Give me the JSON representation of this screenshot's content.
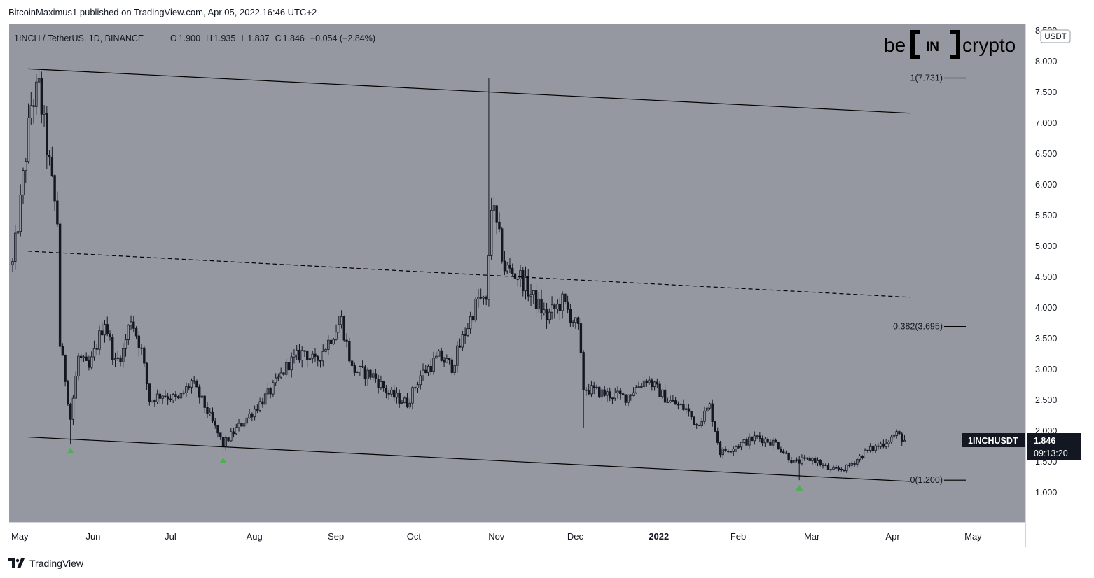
{
  "header": {
    "published_text": "BitcoinMaximus1 published on TradingView.com, Apr 05, 2022 16:46 UTC+2"
  },
  "legend": {
    "symbol": "1INCH / TetherUS, 1D, BINANCE",
    "o_label": "O",
    "o_value": "1.900",
    "h_label": "H",
    "h_value": "1.935",
    "l_label": "L",
    "l_value": "1.837",
    "c_label": "C",
    "c_value": "1.846",
    "change": "−0.054 (−2.84%)"
  },
  "logo": {
    "left": "be",
    "mid": "IN",
    "right": "crypto"
  },
  "price_scale": {
    "currency": "USDT"
  },
  "last_price": {
    "ticker": "1INCHUSDT",
    "price": "1.846",
    "countdown": "09:13:20"
  },
  "fib_labels": [
    {
      "text": "1(7.731)",
      "value": 7.731
    },
    {
      "text": "0.382(3.695)",
      "value": 3.695
    },
    {
      "text": "0(1.200)",
      "value": 1.2
    }
  ],
  "footer": {
    "brand": "TradingView"
  },
  "colors": {
    "plot_bg": "#9598a1",
    "candle": "#131722",
    "arrow": "#4caf50",
    "label_bg": "#131722",
    "label_text": "#ffffff",
    "price_axis_bg": "#ffffff"
  },
  "chart_data": {
    "type": "candlestick",
    "title": "1INCH / TetherUS, 1D, BINANCE",
    "x_tick_labels": [
      "May",
      "Jun",
      "Jul",
      "Aug",
      "Sep",
      "Oct",
      "Nov",
      "Dec",
      "2022",
      "Feb",
      "Mar",
      "Apr",
      "May"
    ],
    "y_tick_labels": [
      "1.000",
      "1.500",
      "2.000",
      "2.500",
      "3.000",
      "3.500",
      "4.000",
      "4.500",
      "5.000",
      "5.500",
      "6.000",
      "6.500",
      "7.000",
      "7.500",
      "8.000",
      "8.500"
    ],
    "ylim": [
      0.52,
      8.6
    ],
    "grid": false,
    "trendlines": [
      {
        "style": "solid",
        "from": [
          "2021-05-01",
          7.88
        ],
        "to": [
          "2022-03-30",
          7.16
        ]
      },
      {
        "style": "dashed",
        "from": [
          "2021-05-01",
          4.92
        ],
        "to": [
          "2022-03-30",
          4.17
        ]
      },
      {
        "style": "solid",
        "from": [
          "2021-05-01",
          1.9
        ],
        "to": [
          "2022-03-30",
          1.18
        ]
      }
    ],
    "markers": [
      {
        "type": "arrow-up",
        "date": "2021-05-23",
        "value": 1.68
      },
      {
        "type": "arrow-up",
        "date": "2021-07-20",
        "value": 1.52
      },
      {
        "type": "arrow-up",
        "date": "2022-02-24",
        "value": 1.08
      }
    ],
    "series": [
      {
        "keypoints": [
          [
            "2021-05-01",
            4.7
          ],
          [
            "2021-05-04",
            5.7
          ],
          [
            "2021-05-08",
            7.3
          ],
          [
            "2021-05-11",
            7.55
          ],
          [
            "2021-05-15",
            6.3
          ],
          [
            "2021-05-18",
            5.4
          ],
          [
            "2021-05-19",
            3.4
          ],
          [
            "2021-05-21",
            2.85
          ],
          [
            "2021-05-23",
            2.2
          ],
          [
            "2021-05-26",
            3.2
          ],
          [
            "2021-05-30",
            3.0
          ],
          [
            "2021-06-05",
            3.8
          ],
          [
            "2021-06-09",
            3.1
          ],
          [
            "2021-06-12",
            3.3
          ],
          [
            "2021-06-15",
            3.85
          ],
          [
            "2021-06-19",
            3.3
          ],
          [
            "2021-06-22",
            2.5
          ],
          [
            "2021-06-27",
            2.6
          ],
          [
            "2021-07-03",
            2.5
          ],
          [
            "2021-07-08",
            2.8
          ],
          [
            "2021-07-13",
            2.4
          ],
          [
            "2021-07-20",
            1.78
          ],
          [
            "2021-07-24",
            1.98
          ],
          [
            "2021-08-01",
            2.35
          ],
          [
            "2021-08-08",
            2.7
          ],
          [
            "2021-08-14",
            3.1
          ],
          [
            "2021-08-20",
            3.3
          ],
          [
            "2021-08-24",
            3.1
          ],
          [
            "2021-09-03",
            3.8
          ],
          [
            "2021-09-07",
            3.0
          ],
          [
            "2021-09-15",
            2.9
          ],
          [
            "2021-09-21",
            2.6
          ],
          [
            "2021-09-28",
            2.45
          ],
          [
            "2021-10-03",
            2.9
          ],
          [
            "2021-10-10",
            3.2
          ],
          [
            "2021-10-15",
            3.05
          ],
          [
            "2021-10-20",
            3.6
          ],
          [
            "2021-10-25",
            4.15
          ],
          [
            "2021-10-28",
            4.05
          ],
          [
            "2021-10-30",
            5.7
          ],
          [
            "2021-11-02",
            5.1
          ],
          [
            "2021-11-04",
            4.65
          ],
          [
            "2021-11-10",
            4.5
          ],
          [
            "2021-11-15",
            4.15
          ],
          [
            "2021-11-20",
            3.85
          ],
          [
            "2021-11-26",
            4.1
          ],
          [
            "2021-12-02",
            3.65
          ],
          [
            "2021-12-04",
            2.7
          ],
          [
            "2021-12-12",
            2.6
          ],
          [
            "2021-12-20",
            2.55
          ],
          [
            "2021-12-28",
            2.85
          ],
          [
            "2022-01-05",
            2.5
          ],
          [
            "2022-01-12",
            2.35
          ],
          [
            "2022-01-16",
            2.1
          ],
          [
            "2022-01-21",
            2.4
          ],
          [
            "2022-01-25",
            1.65
          ],
          [
            "2022-02-08",
            1.9
          ],
          [
            "2022-02-15",
            1.8
          ],
          [
            "2022-02-22",
            1.48
          ],
          [
            "2022-03-01",
            1.55
          ],
          [
            "2022-03-08",
            1.35
          ],
          [
            "2022-03-14",
            1.4
          ],
          [
            "2022-03-21",
            1.65
          ],
          [
            "2022-03-28",
            1.8
          ],
          [
            "2022-04-02",
            1.95
          ],
          [
            "2022-04-05",
            1.846
          ]
        ]
      }
    ]
  }
}
